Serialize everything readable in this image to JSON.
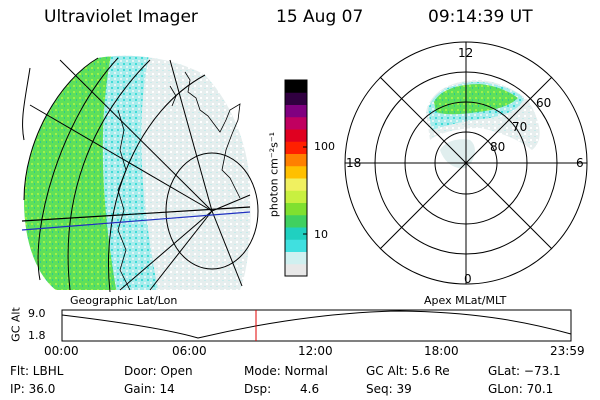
{
  "header": {
    "instrument": "Ultraviolet Imager",
    "date": "15 Aug 07",
    "time": "09:14:39 UT"
  },
  "colorbar": {
    "unit_label": "photon cm⁻²s⁻¹",
    "ticks": [
      "100",
      "10"
    ],
    "colors": [
      "#e8e8e8",
      "#d0f0f0",
      "#40e0e0",
      "#20d0c0",
      "#40d060",
      "#80e030",
      "#c8f040",
      "#f0f060",
      "#ffc000",
      "#ff8000",
      "#ff2000",
      "#e00020",
      "#c00060",
      "#800080",
      "#300040",
      "#000000"
    ]
  },
  "geo_panel": {
    "caption": "Geographic Lat/Lon"
  },
  "polar_panel": {
    "caption": "Apex MLat/MLT",
    "mlt_labels": {
      "top": "12",
      "bottom": "0",
      "left": "18",
      "right": "6"
    },
    "lat_labels": [
      "60",
      "70",
      "80"
    ]
  },
  "altitude_plot": {
    "ylabel": "GC Alt",
    "yticks": [
      "9.0",
      "1.8"
    ],
    "xticks": [
      "00:00",
      "06:00",
      "12:00",
      "18:00",
      "23:59"
    ],
    "marker_color": "#e00000"
  },
  "footer": {
    "filter": "Flt: LBHL",
    "ip": "IP: 36.0",
    "door": "Door: Open",
    "gain": "Gain: 14",
    "mode": "Mode: Normal",
    "dsp_label": "Dsp:",
    "dsp_value": "4.6",
    "gc_alt": "GC Alt: 5.6 Re",
    "seq": "Seq: 39",
    "glat": "GLat: −73.1",
    "glon": "GLon:  70.1"
  }
}
